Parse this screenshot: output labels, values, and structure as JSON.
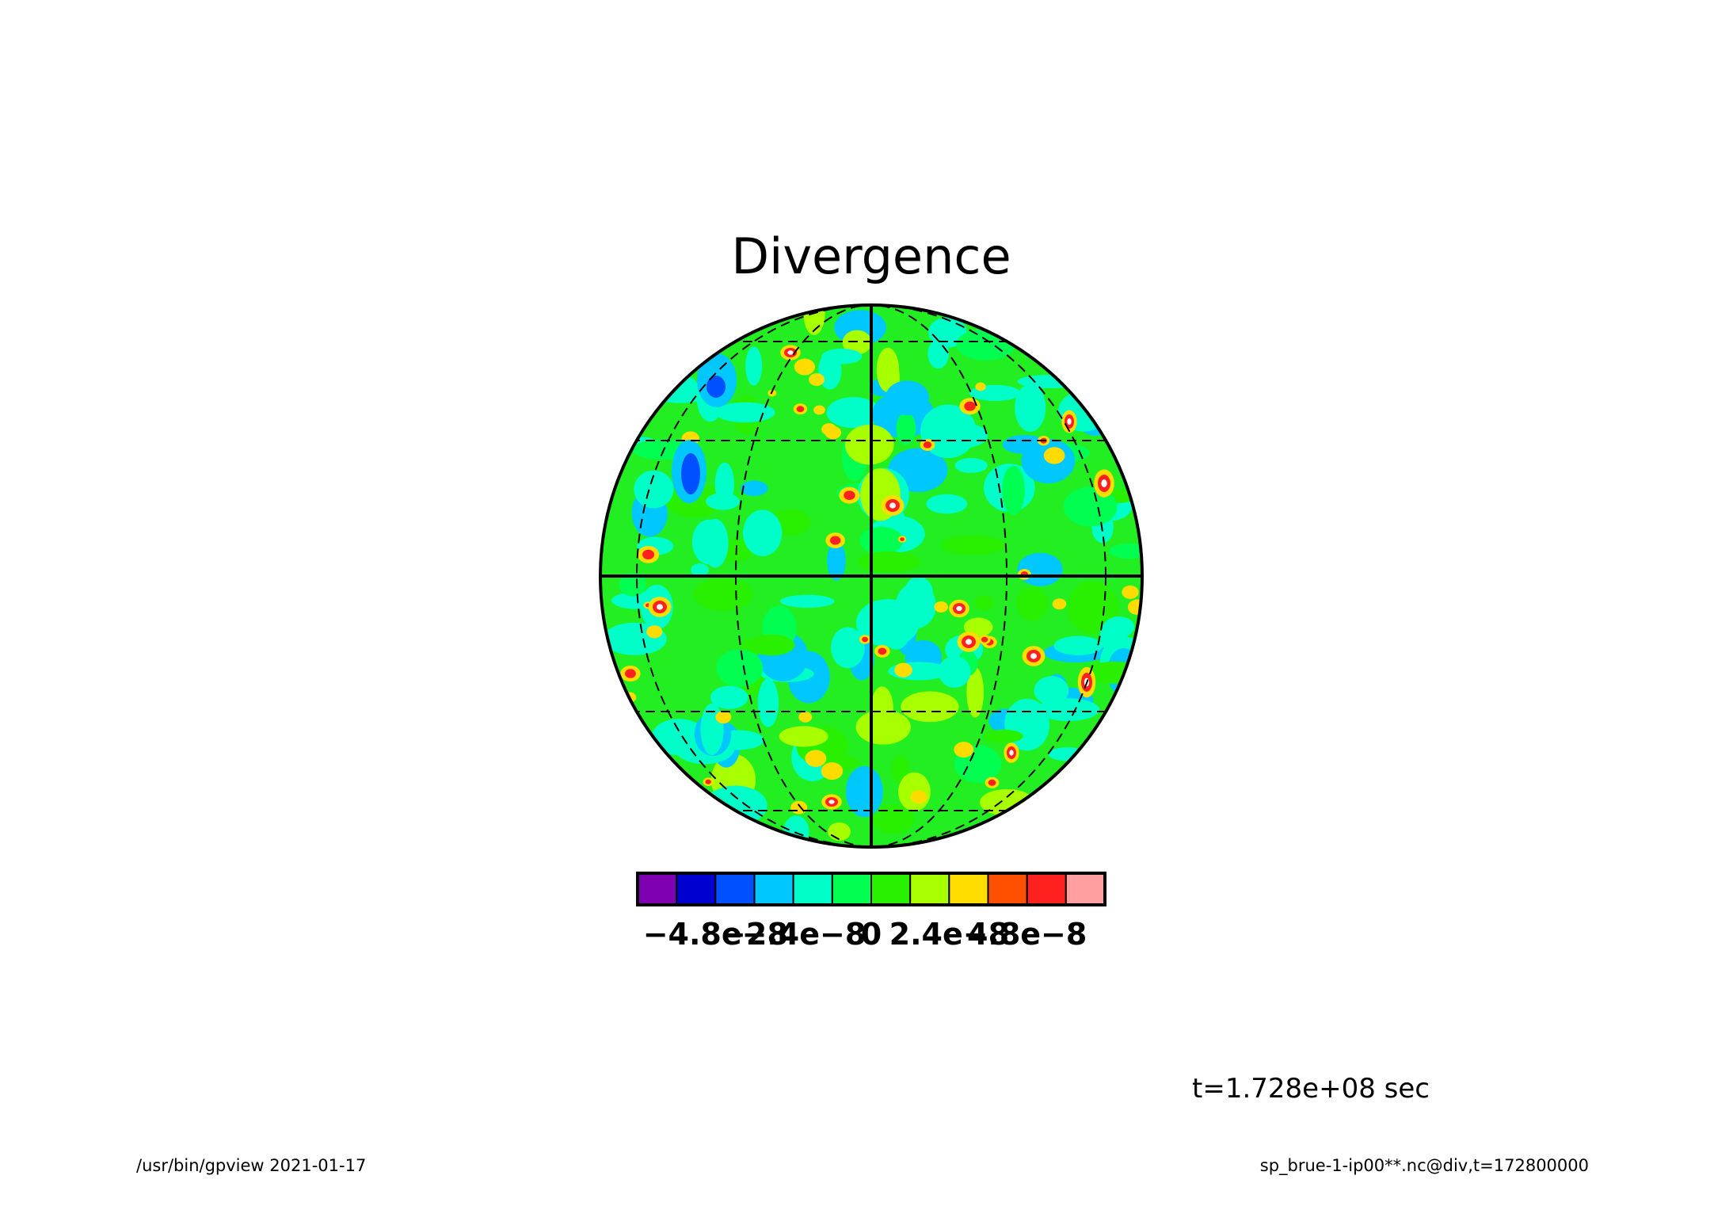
{
  "chart_data": {
    "type": "heatmap",
    "projection": "orthographic",
    "title": "Divergence",
    "grid": true,
    "colorbar": {
      "orientation": "horizontal",
      "placement": "bottom",
      "colors": [
        "#7f00b0",
        "#0000d0",
        "#0050ff",
        "#00c8ff",
        "#00ffc8",
        "#00ff50",
        "#28f000",
        "#a8ff00",
        "#ffdc00",
        "#ff5000",
        "#ff2020",
        "#ff9f9f"
      ],
      "levels": [
        -6e-08,
        -4.8e-08,
        -3.6e-08,
        -2.4e-08,
        -1.2e-08,
        0,
        1.2e-08,
        2.4e-08,
        3.6e-08,
        4.8e-08,
        6e-08
      ],
      "tick_values": [
        -4.8e-08,
        -2.4e-08,
        0,
        2.4e-08,
        4.8e-08
      ],
      "tick_labels": [
        "−4.8e−8",
        "−2.4e−8",
        "0",
        "2.4e−8",
        "4.8e−8"
      ]
    },
    "time_label": "t=1.728e+08 sec"
  },
  "footer": {
    "left": "/usr/bin/gpview  2021-01-17",
    "right": "sp_brue-1-ip00**.nc@div,t=172800000"
  }
}
